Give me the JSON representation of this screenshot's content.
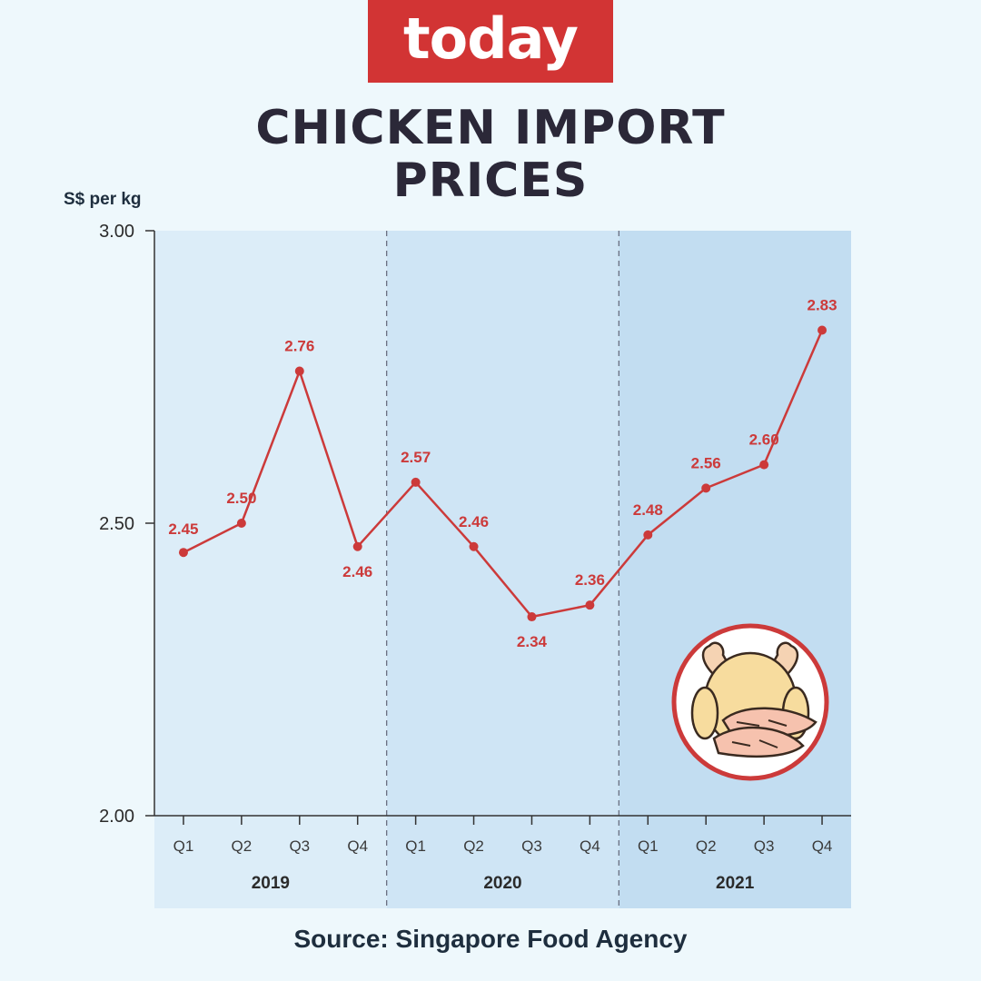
{
  "brand": {
    "logo_text": "today",
    "color": "#d23434"
  },
  "title_lines": [
    "CHICKEN IMPORT",
    "PRICES"
  ],
  "source": "Source: Singapore Food Agency",
  "chart_data": {
    "type": "line",
    "title": "CHICKEN IMPORT PRICES",
    "ylabel": "S$ per kg",
    "ylim": [
      2.0,
      3.0
    ],
    "yticks": [
      "2.00",
      "2.50",
      "3.00"
    ],
    "groups": [
      "2019",
      "2020",
      "2021"
    ],
    "categories": [
      "Q1",
      "Q2",
      "Q3",
      "Q4",
      "Q1",
      "Q2",
      "Q3",
      "Q4",
      "Q1",
      "Q2",
      "Q3",
      "Q4"
    ],
    "values": [
      2.45,
      2.5,
      2.76,
      2.46,
      2.57,
      2.46,
      2.34,
      2.36,
      2.48,
      2.56,
      2.6,
      2.83
    ],
    "data_labels": [
      "2.45",
      "2.50",
      "2.76",
      "2.46",
      "2.57",
      "2.46",
      "2.34",
      "2.36",
      "2.48",
      "2.56",
      "2.60",
      "2.83"
    ],
    "line_color": "#cc3a3a",
    "band_colors": [
      "#dcedf8",
      "#cfe5f5",
      "#c2ddf1"
    ],
    "grid": false
  },
  "illustration": {
    "icon": "chicken-icon",
    "ring_color": "#cc3a3a"
  }
}
